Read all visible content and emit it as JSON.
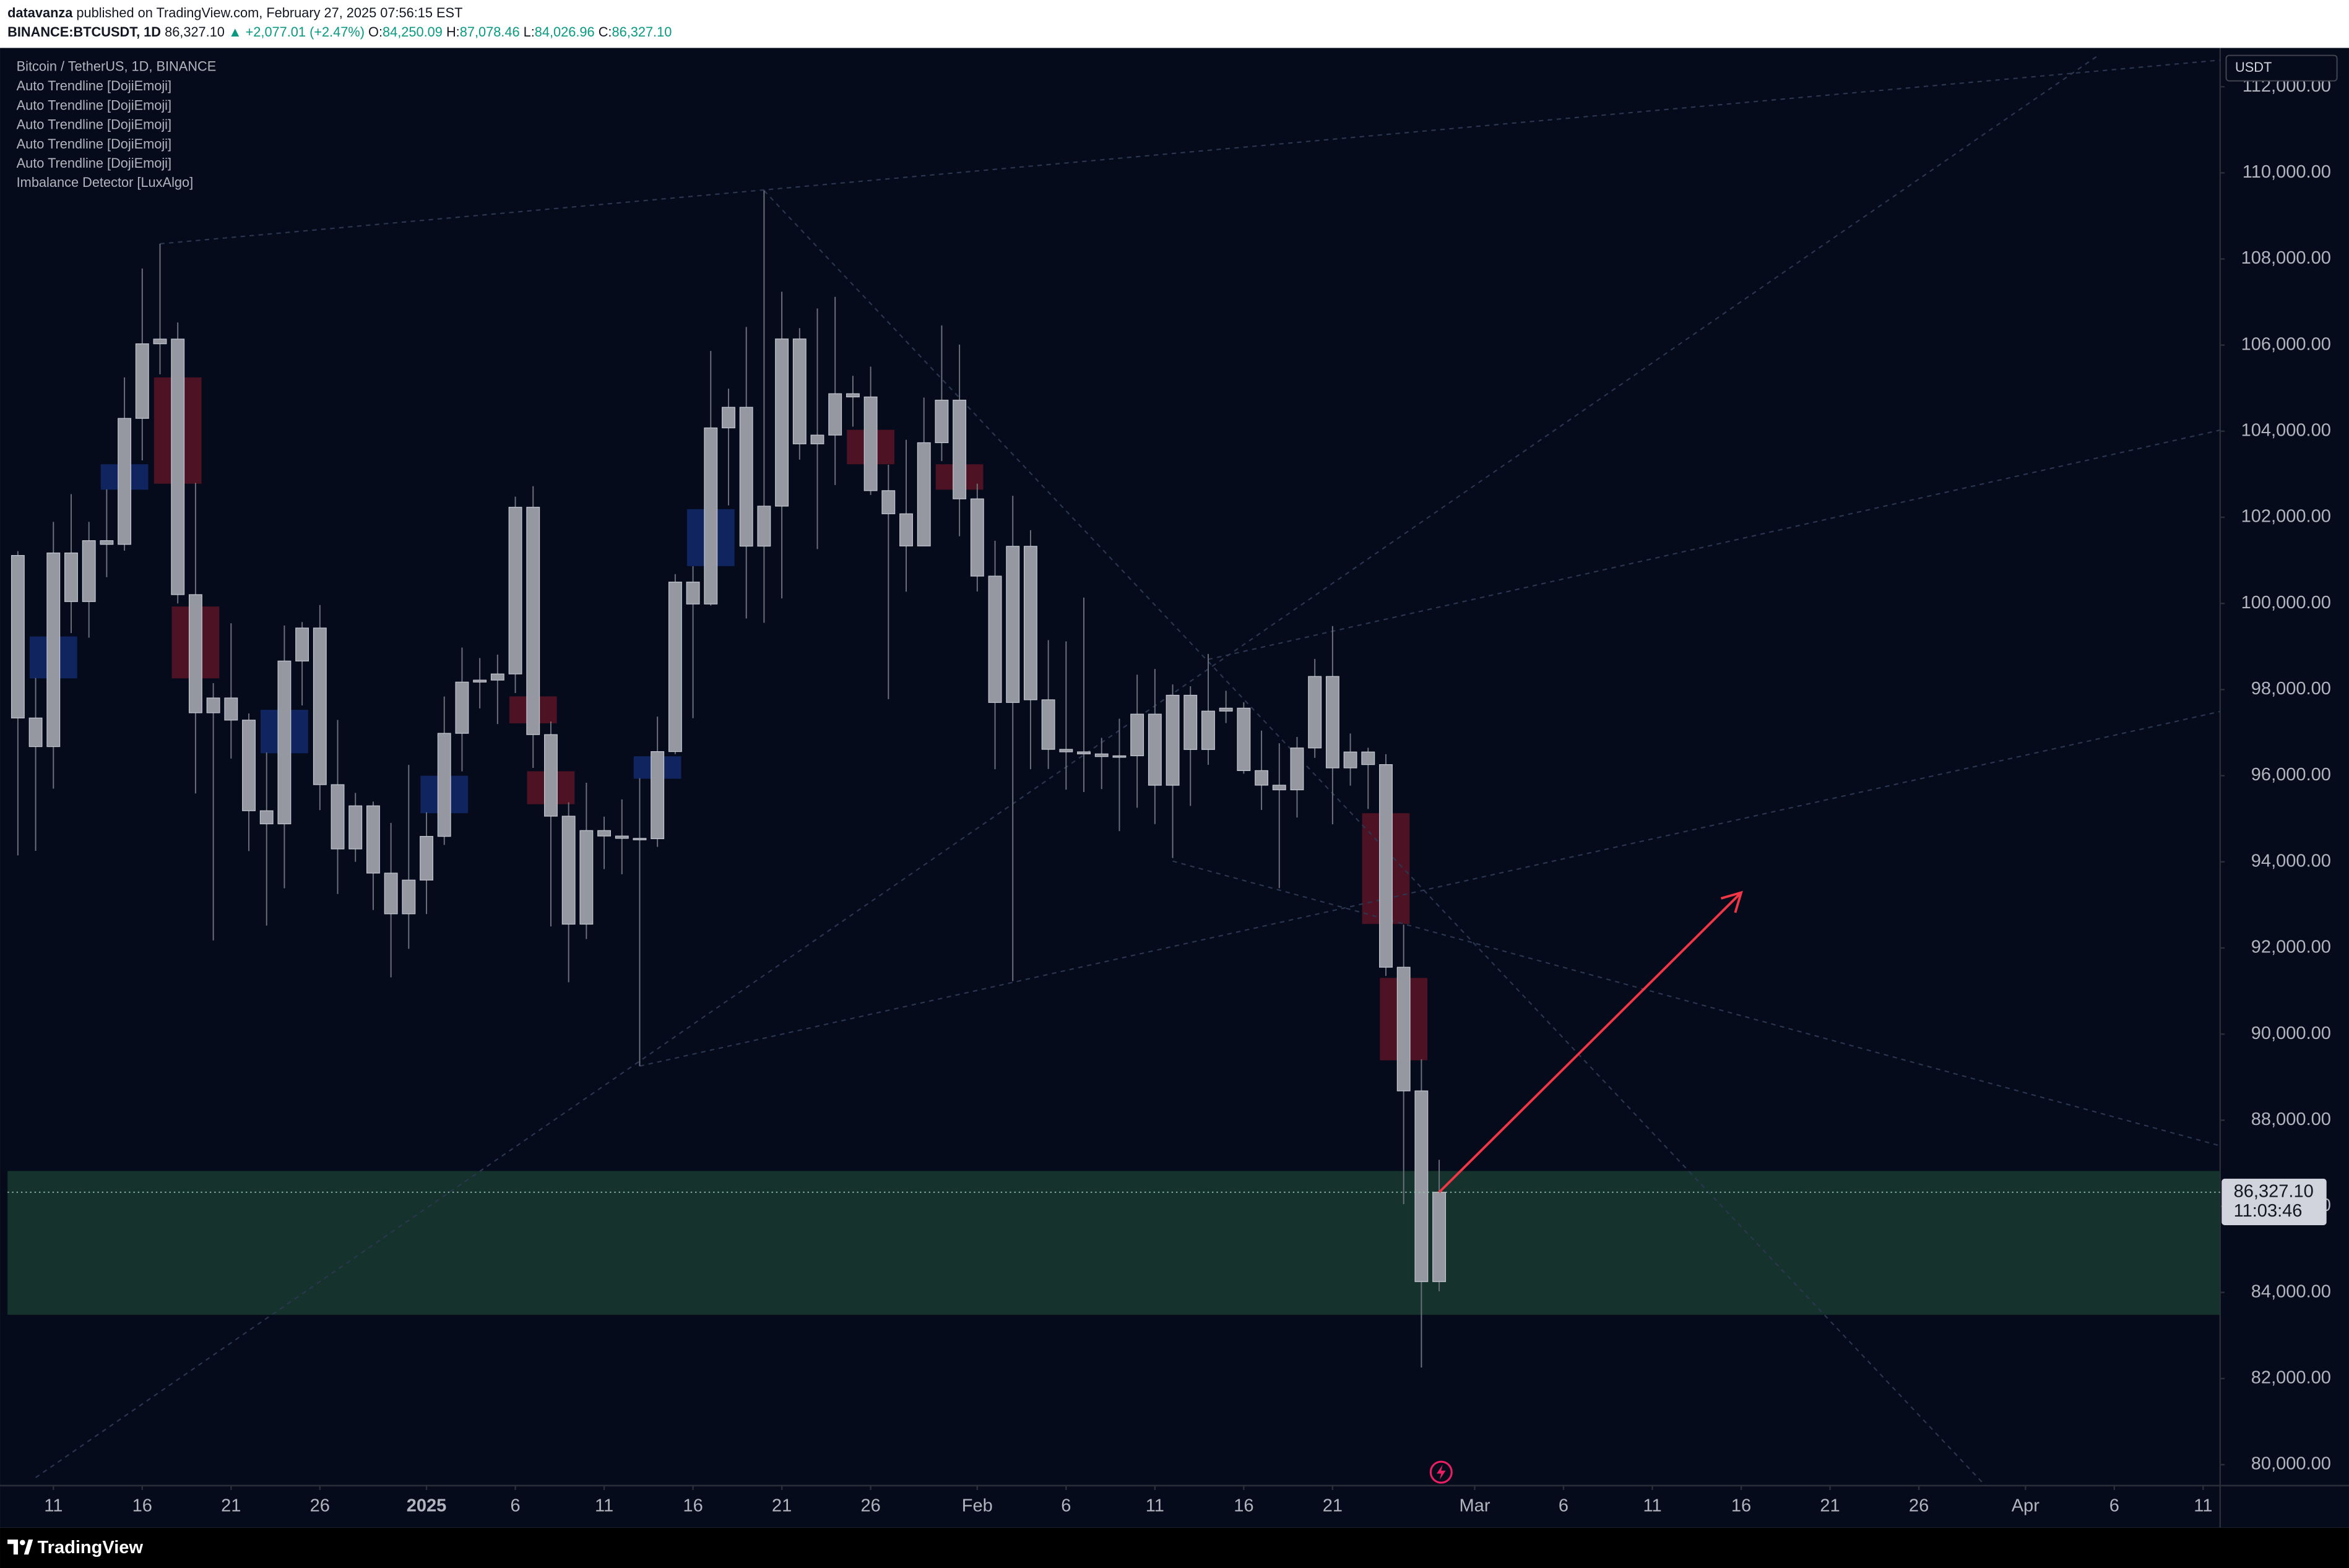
{
  "header": {
    "author": "datavanza",
    "published": "published on TradingView.com, February 27, 2025 07:56:15 EST",
    "symbol": "BINANCE:BTCUSDT, 1D",
    "last": "86,327.10",
    "change": "▲ +2,077.01 (+2.47%)",
    "ohlc": [
      {
        "key": "O:",
        "value": "84,250.09"
      },
      {
        "key": "H:",
        "value": "87,078.46"
      },
      {
        "key": "L:",
        "value": "84,026.96"
      },
      {
        "key": "C:",
        "value": "86,327.10"
      }
    ]
  },
  "chart_data": {
    "type": "candlestick",
    "title": "Bitcoin / TetherUS, 1D, BINANCE",
    "indicators": [
      "Auto Trendline [DojiEmoji]",
      "Auto Trendline [DojiEmoji]",
      "Auto Trendline [DojiEmoji]",
      "Auto Trendline [DojiEmoji]",
      "Auto Trendline [DojiEmoji]",
      "Imbalance Detector [LuxAlgo]"
    ],
    "currency": "USDT",
    "x": [
      "2024-12-09",
      "2024-12-10",
      "2024-12-11",
      "2024-12-12",
      "2024-12-13",
      "2024-12-14",
      "2024-12-15",
      "2024-12-16",
      "2024-12-17",
      "2024-12-18",
      "2024-12-19",
      "2024-12-20",
      "2024-12-21",
      "2024-12-22",
      "2024-12-23",
      "2024-12-24",
      "2024-12-25",
      "2024-12-26",
      "2024-12-27",
      "2024-12-28",
      "2024-12-29",
      "2024-12-30",
      "2024-12-31",
      "2025-01-01",
      "2025-01-02",
      "2025-01-03",
      "2025-01-04",
      "2025-01-05",
      "2025-01-06",
      "2025-01-07",
      "2025-01-08",
      "2025-01-09",
      "2025-01-10",
      "2025-01-11",
      "2025-01-12",
      "2025-01-13",
      "2025-01-14",
      "2025-01-15",
      "2025-01-16",
      "2025-01-17",
      "2025-01-18",
      "2025-01-19",
      "2025-01-20",
      "2025-01-21",
      "2025-01-22",
      "2025-01-23",
      "2025-01-24",
      "2025-01-25",
      "2025-01-26",
      "2025-01-27",
      "2025-01-28",
      "2025-01-29",
      "2025-01-30",
      "2025-01-31",
      "2025-02-01",
      "2025-02-02",
      "2025-02-03",
      "2025-02-04",
      "2025-02-05",
      "2025-02-06",
      "2025-02-07",
      "2025-02-08",
      "2025-02-09",
      "2025-02-10",
      "2025-02-11",
      "2025-02-12",
      "2025-02-13",
      "2025-02-14",
      "2025-02-15",
      "2025-02-16",
      "2025-02-17",
      "2025-02-18",
      "2025-02-19",
      "2025-02-20",
      "2025-02-21",
      "2025-02-22",
      "2025-02-23",
      "2025-02-24",
      "2025-02-25",
      "2025-02-26",
      "2025-02-27"
    ],
    "open": [
      101115,
      97340,
      96675,
      101173,
      100043,
      101459,
      101372,
      104298,
      106030,
      106140,
      100205,
      97461,
      97805,
      97291,
      95186,
      94881,
      98663,
      99430,
      95792,
      94299,
      95300,
      93738,
      92792,
      93576,
      94591,
      96984,
      98174,
      98220,
      98363,
      102235,
      96954,
      95060,
      92552,
      94726,
      94599,
      94545,
      94536,
      96560,
      100497,
      99987,
      104077,
      104556,
      101331,
      102260,
      106143,
      103706,
      103910,
      104871,
      104796,
      102620,
      102082,
      101335,
      103733,
      104722,
      102429,
      100635,
      97700,
      101328,
      97763,
      96612,
      96554,
      96506,
      96444,
      96462,
      97430,
      95778,
      97869,
      96608,
      97500,
      97569,
      96118,
      95780,
      95671,
      96644,
      98305,
      96181,
      96551,
      96258,
      91552,
      88680,
      84250.09
    ],
    "high": [
      101215,
      98270,
      101895,
      102540,
      101895,
      102650,
      105250,
      107780,
      108353,
      106525,
      102800,
      98150,
      99540,
      97448,
      96538,
      99487,
      99569,
      99963,
      97294,
      95600,
      95400,
      94903,
      96250,
      95149,
      97839,
      98976,
      98734,
      98813,
      102480,
      102724,
      97258,
      95382,
      95836,
      95050,
      95450,
      95940,
      97371,
      100681,
      100866,
      105865,
      104988,
      106422,
      109588,
      107240,
      106394,
      106850,
      107120,
      105286,
      105500,
      103222,
      103800,
      104782,
      106457,
      106012,
      102783,
      101456,
      102500,
      101700,
      99149,
      99120,
      100137,
      96880,
      97323,
      98345,
      98478,
      98119,
      98078,
      98826,
      97972,
      97704,
      97046,
      96753,
      96899,
      98711,
      99475,
      96980,
      96650,
      96500,
      92540,
      89414,
      87078.46
    ],
    "low": [
      94150,
      94256,
      95700,
      99311,
      99205,
      100610,
      101227,
      103323,
      105322,
      100000,
      95588,
      92175,
      96398,
      94250,
      92520,
      93385,
      97632,
      95200,
      93253,
      94000,
      92881,
      91317,
      91980,
      92788,
      94392,
      96100,
      97562,
      97200,
      97920,
      96181,
      92500,
      91203,
      92207,
      93831,
      93711,
      89256,
      94346,
      96500,
      97335,
      99950,
      102277,
      99651,
      99550,
      100119,
      103339,
      101262,
      102750,
      104106,
      102520,
      97777,
      100272,
      101328,
      103306,
      101560,
      100279,
      96150,
      91231,
      96150,
      96155,
      95676,
      95620,
      95688,
      94713,
      95256,
      94876,
      94088,
      95299,
      96252,
      97223,
      96046,
      95205,
      93388,
      95029,
      96415,
      94871,
      95770,
      95227,
      91350,
      86050,
      82256,
      84026.96
    ],
    "close": [
      97340,
      96675,
      101173,
      100043,
      101459,
      101372,
      104298,
      106030,
      106140,
      100205,
      97461,
      97805,
      97291,
      95186,
      94881,
      98663,
      99430,
      95792,
      94299,
      95300,
      93738,
      92792,
      93576,
      94591,
      96984,
      98174,
      98220,
      98363,
      102235,
      96954,
      95060,
      92552,
      94726,
      94599,
      94545,
      94536,
      96560,
      100497,
      99987,
      104077,
      104556,
      101331,
      102260,
      106143,
      103706,
      103910,
      104871,
      104796,
      102620,
      102082,
      101335,
      103733,
      104722,
      102429,
      100635,
      97700,
      101328,
      97763,
      96612,
      96554,
      96506,
      96444,
      96462,
      97430,
      95778,
      97869,
      96608,
      97500,
      97569,
      96118,
      95780,
      95671,
      96644,
      98305,
      96181,
      96551,
      96258,
      91552,
      88680,
      84250.09,
      86327.1
    ],
    "color": "#9598a1",
    "xlim": [
      "2024-12-08T10:00",
      "2025-04-11T23:00"
    ],
    "ylim": [
      79513,
      112797
    ],
    "xticks": [
      {
        "value": "2024-12-11",
        "label": "11"
      },
      {
        "value": "2024-12-16",
        "label": "16"
      },
      {
        "value": "2024-12-21",
        "label": "21"
      },
      {
        "value": "2024-12-26",
        "label": "26"
      },
      {
        "value": "2025-01-01",
        "label": "2025"
      },
      {
        "value": "2025-01-06",
        "label": "6"
      },
      {
        "value": "2025-01-11",
        "label": "11"
      },
      {
        "value": "2025-01-16",
        "label": "16"
      },
      {
        "value": "2025-01-21",
        "label": "21"
      },
      {
        "value": "2025-01-26",
        "label": "26"
      },
      {
        "value": "2025-02-01",
        "label": "Feb"
      },
      {
        "value": "2025-02-06",
        "label": "6"
      },
      {
        "value": "2025-02-11",
        "label": "11"
      },
      {
        "value": "2025-02-16",
        "label": "16"
      },
      {
        "value": "2025-02-21",
        "label": "21"
      },
      {
        "value": "2025-03-01",
        "label": "Mar"
      },
      {
        "value": "2025-03-06",
        "label": "6"
      },
      {
        "value": "2025-03-11",
        "label": "11"
      },
      {
        "value": "2025-03-16",
        "label": "16"
      },
      {
        "value": "2025-03-21",
        "label": "21"
      },
      {
        "value": "2025-03-26",
        "label": "26"
      },
      {
        "value": "2025-04-01",
        "label": "Apr"
      },
      {
        "value": "2025-04-06",
        "label": "6"
      },
      {
        "value": "2025-04-11",
        "label": "11"
      }
    ],
    "yticks": [
      {
        "value": 80000,
        "label": "80,000.00"
      },
      {
        "value": 82000,
        "label": "82,000.00"
      },
      {
        "value": 84000,
        "label": "84,000.00"
      },
      {
        "value": 86000,
        "label": "86,000.00"
      },
      {
        "value": 88000,
        "label": "88,000.00"
      },
      {
        "value": 90000,
        "label": "90,000.00"
      },
      {
        "value": 92000,
        "label": "92,000.00"
      },
      {
        "value": 94000,
        "label": "94,000.00"
      },
      {
        "value": 96000,
        "label": "96,000.00"
      },
      {
        "value": 98000,
        "label": "98,000.00"
      },
      {
        "value": 100000,
        "label": "100,000.00"
      },
      {
        "value": 102000,
        "label": "102,000.00"
      },
      {
        "value": 104000,
        "label": "104,000.00"
      },
      {
        "value": 106000,
        "label": "106,000.00"
      },
      {
        "value": 108000,
        "label": "108,000.00"
      },
      {
        "value": 110000,
        "label": "110,000.00"
      },
      {
        "value": 112000,
        "label": "112,000.00"
      }
    ],
    "grid": false,
    "last_price": {
      "value": 86327.1,
      "label": "86,327.10"
    },
    "countdown": "11:03:46",
    "zone": [
      83480,
      86820
    ],
    "zone_color": "#17362f",
    "imbalances": [
      {
        "x": [
          "2024-12-10",
          "2024-12-12"
        ],
        "y": [
          98260,
          99233
        ],
        "color": "#13296b"
      },
      {
        "x": [
          "2024-12-14",
          "2024-12-16"
        ],
        "y": [
          102642,
          103233
        ],
        "color": "#13296b"
      },
      {
        "x": [
          "2024-12-23",
          "2024-12-25"
        ],
        "y": [
          96521,
          97529
        ],
        "color": "#13296b"
      },
      {
        "x": [
          "2025-01-01",
          "2025-01-03"
        ],
        "y": [
          95129,
          95999
        ],
        "color": "#13296b"
      },
      {
        "x": [
          "2025-01-13",
          "2025-01-15"
        ],
        "y": [
          95929,
          96451
        ],
        "color": "#13296b"
      },
      {
        "x": [
          "2025-01-16",
          "2025-01-18"
        ],
        "y": [
          100868,
          102190
        ],
        "color": "#13296b"
      },
      {
        "x": [
          "2024-12-17",
          "2024-12-19"
        ],
        "y": [
          102781,
          105250
        ],
        "color": "#5a1424"
      },
      {
        "x": [
          "2024-12-18",
          "2024-12-20"
        ],
        "y": [
          98260,
          99929
        ],
        "color": "#5a1424"
      },
      {
        "x": [
          "2025-01-06",
          "2025-01-08"
        ],
        "y": [
          97216,
          97842
        ],
        "color": "#5a1424"
      },
      {
        "x": [
          "2025-01-07",
          "2025-01-09"
        ],
        "y": [
          95338,
          96103
        ],
        "color": "#5a1424"
      },
      {
        "x": [
          "2025-01-25",
          "2025-01-27"
        ],
        "y": [
          103233,
          104033
        ],
        "color": "#5a1424"
      },
      {
        "x": [
          "2025-01-30",
          "2025-02-01"
        ],
        "y": [
          102642,
          103233
        ],
        "color": "#5a1424"
      },
      {
        "x": [
          "2025-02-23",
          "2025-02-25"
        ],
        "y": [
          92556,
          95129
        ],
        "color": "#5a1424"
      },
      {
        "x": [
          "2025-02-24",
          "2025-02-26"
        ],
        "y": [
          89391,
          91304
        ],
        "color": "#5a1424"
      }
    ],
    "trendline_color": "#2b3650",
    "trendlines": [
      {
        "x": [
          "2024-12-17",
          "2025-04-12"
        ],
        "y": [
          108353,
          112620
        ]
      },
      {
        "x": [
          "2024-12-10",
          "2025-04-05"
        ],
        "y": [
          79700,
          112700
        ]
      },
      {
        "x": [
          "2025-01-13",
          "2025-04-12"
        ],
        "y": [
          89256,
          97495
        ]
      },
      {
        "x": [
          "2025-02-14",
          "2025-04-12"
        ],
        "y": [
          98700,
          104030
        ]
      },
      {
        "x": [
          "2025-01-20",
          "2025-03-30"
        ],
        "y": [
          109588,
          79400
        ]
      },
      {
        "x": [
          "2025-02-12",
          "2025-04-12"
        ],
        "y": [
          94016,
          87400
        ]
      }
    ],
    "arrow": {
      "x": [
        "2025-02-27",
        "2025-03-16"
      ],
      "y": [
        86327.1,
        93286
      ],
      "color": "#f23645"
    }
  },
  "footer": {
    "brand": "TradingView"
  }
}
